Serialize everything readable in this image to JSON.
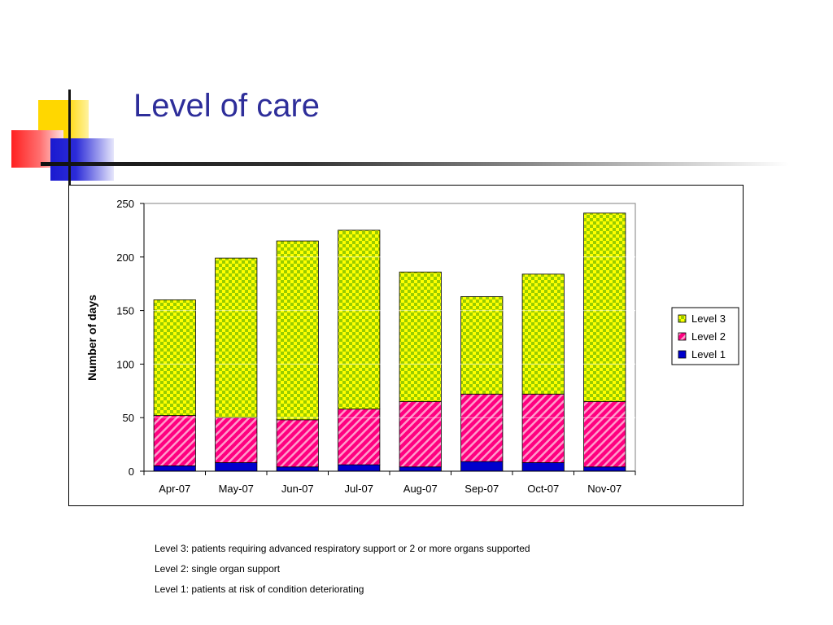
{
  "slide": {
    "title": "Level of care",
    "notes": [
      "Level 3: patients requiring advanced respiratory support or 2 or more organs supported",
      "Level 2: single organ support",
      "Level 1: patients at risk of condition deteriorating"
    ]
  },
  "chart_data": {
    "type": "bar",
    "stacked": true,
    "title": "",
    "xlabel": "",
    "ylabel": "Number of days",
    "ylim": [
      0,
      250
    ],
    "yticks": [
      0,
      50,
      100,
      150,
      200,
      250
    ],
    "grid": true,
    "legend_position": "right",
    "categories": [
      "Apr-07",
      "May-07",
      "Jun-07",
      "Jul-07",
      "Aug-07",
      "Sep-07",
      "Oct-07",
      "Nov-07"
    ],
    "series": [
      {
        "name": "Level 1",
        "color": "#0000cc",
        "pattern": "solid",
        "values": [
          5,
          8,
          4,
          6,
          4,
          9,
          8,
          4
        ]
      },
      {
        "name": "Level 2",
        "color": "#ff0080",
        "pattern": "diagonal-stripes",
        "values": [
          47,
          42,
          44,
          52,
          61,
          63,
          64,
          61
        ]
      },
      {
        "name": "Level 3",
        "color": "#99cc00",
        "pattern": "checkerboard",
        "values": [
          108,
          149,
          167,
          167,
          121,
          91,
          112,
          176
        ]
      }
    ],
    "legend_order": [
      "Level 3",
      "Level 2",
      "Level 1"
    ]
  }
}
